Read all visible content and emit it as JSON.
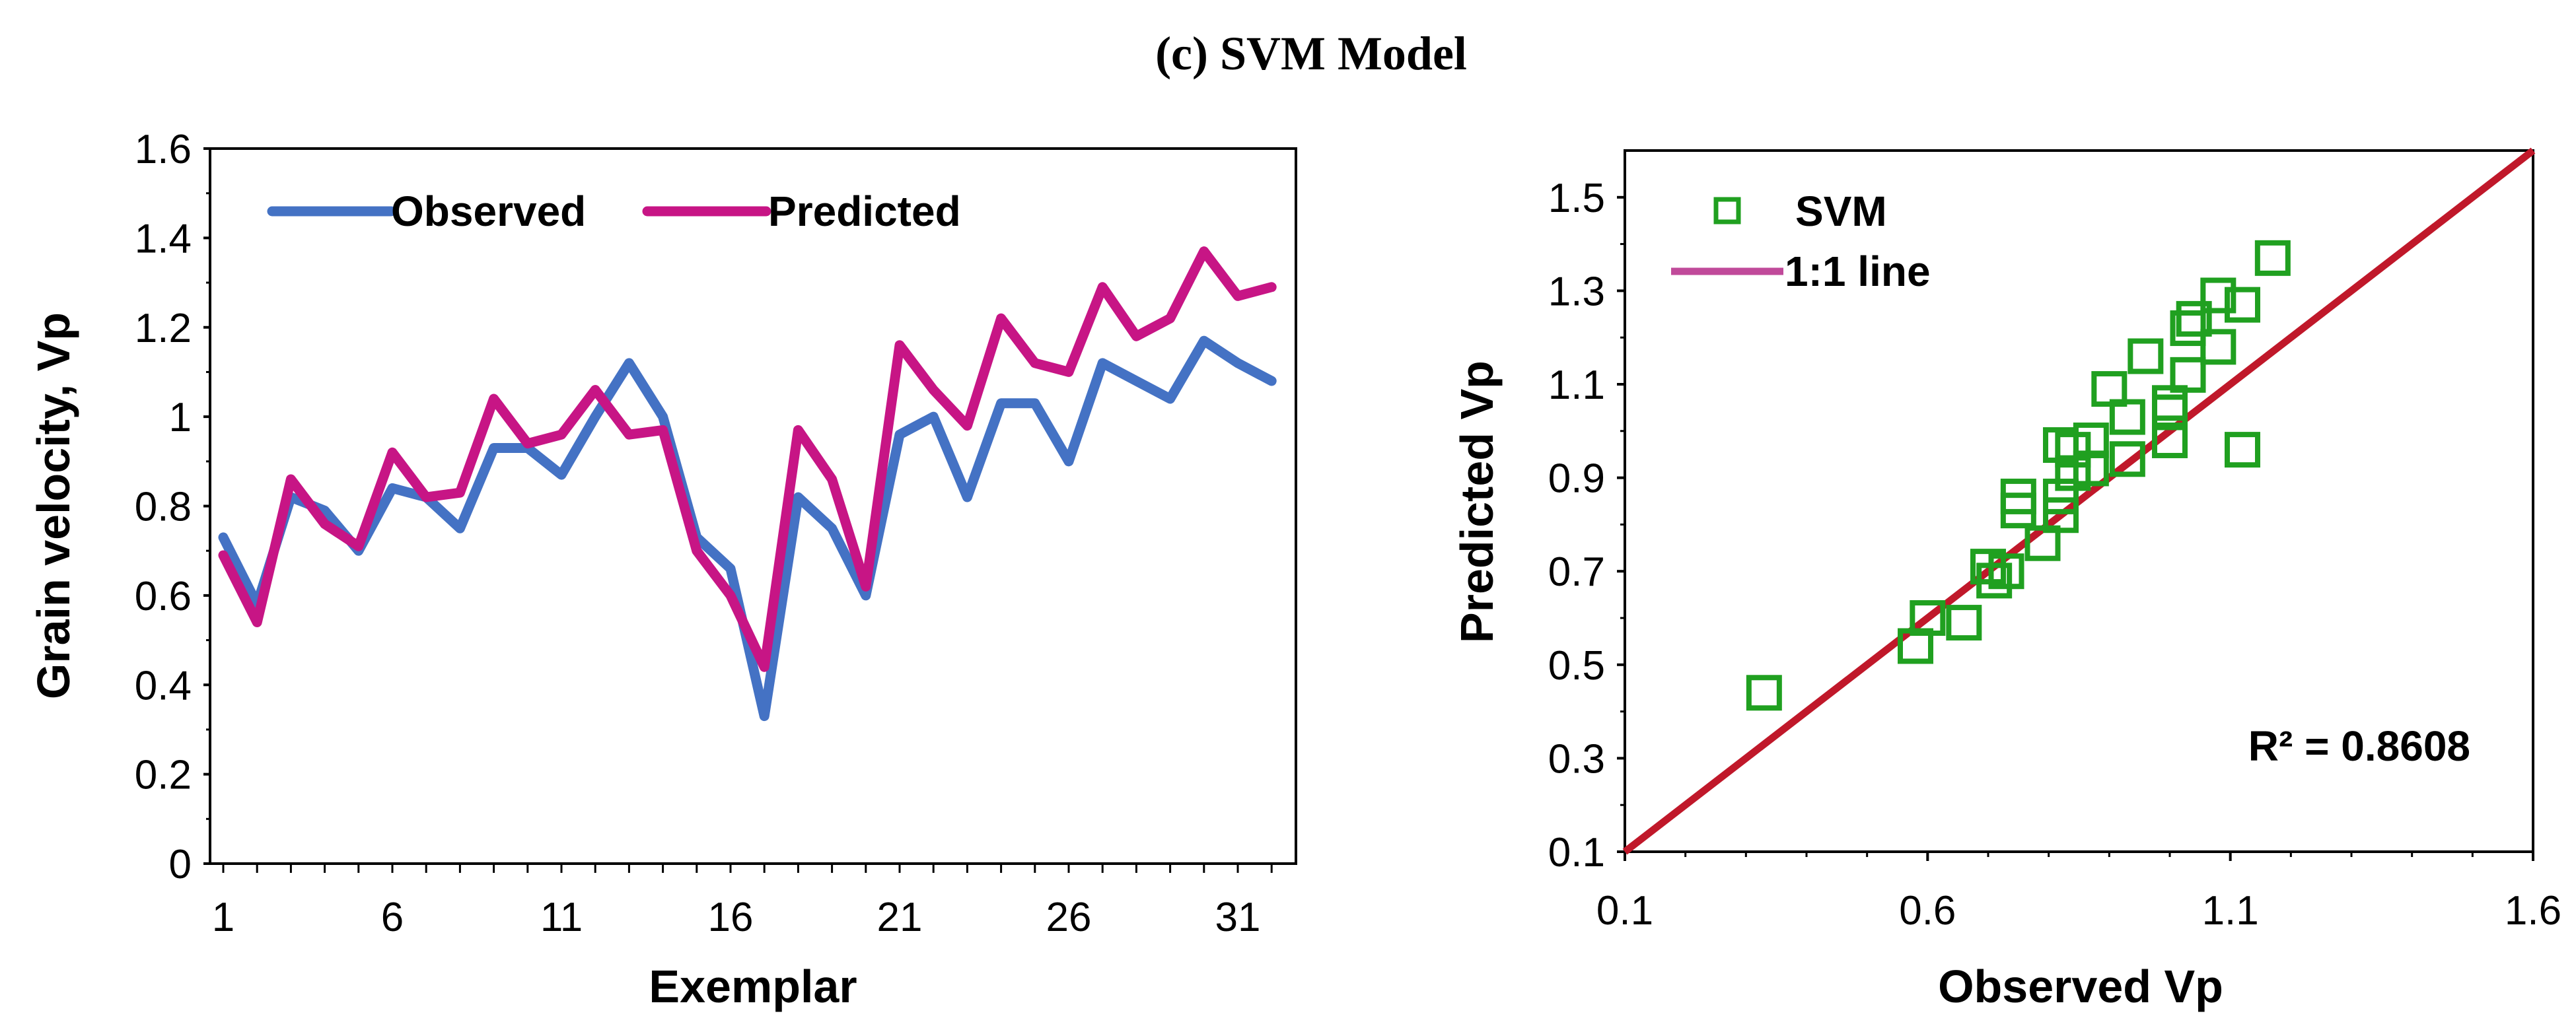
{
  "figure": {
    "title": "(c) SVM Model"
  },
  "colors": {
    "observed": "#4472c4",
    "predicted": "#c71585",
    "svm": "#20a020",
    "one_to_one": "#c0182a",
    "one_to_one_legend": "#c04a9a"
  },
  "chart_data": [
    {
      "type": "line",
      "title": "",
      "xlabel": "Exemplar",
      "ylabel": "Grain velocity, Vp",
      "xlim": [
        1,
        32
      ],
      "ylim": [
        0,
        1.6
      ],
      "xticks": [
        1,
        6,
        11,
        16,
        21,
        26,
        31
      ],
      "yticks": [
        0,
        0.2,
        0.4,
        0.6,
        0.8,
        1,
        1.2,
        1.4,
        1.6
      ],
      "ytick_labels": [
        "0",
        "0.2",
        "0.4",
        "0.6",
        "0.8",
        "1",
        "1.2",
        "1.4",
        "1.6"
      ],
      "legend": "top-left",
      "x": [
        1,
        2,
        3,
        4,
        5,
        6,
        7,
        8,
        9,
        10,
        11,
        12,
        13,
        14,
        15,
        16,
        17,
        18,
        19,
        20,
        21,
        22,
        23,
        24,
        25,
        26,
        27,
        28,
        29,
        30,
        31,
        32
      ],
      "series": [
        {
          "name": "Observed",
          "color": "#4472c4",
          "values": [
            0.73,
            0.58,
            0.82,
            0.79,
            0.7,
            0.84,
            0.82,
            0.75,
            0.93,
            0.93,
            0.87,
            1.0,
            1.12,
            1.0,
            0.73,
            0.66,
            0.33,
            0.82,
            0.75,
            0.6,
            0.96,
            1.0,
            0.82,
            1.03,
            1.03,
            0.9,
            1.12,
            1.08,
            1.04,
            1.17,
            1.12,
            1.08
          ]
        },
        {
          "name": "Predicted",
          "color": "#c71585",
          "values": [
            0.69,
            0.54,
            0.86,
            0.76,
            0.71,
            0.92,
            0.82,
            0.83,
            1.04,
            0.94,
            0.96,
            1.06,
            0.96,
            0.97,
            0.7,
            0.6,
            0.44,
            0.97,
            0.86,
            0.62,
            1.16,
            1.06,
            0.98,
            1.22,
            1.12,
            1.1,
            1.29,
            1.18,
            1.22,
            1.37,
            1.27,
            1.29
          ]
        }
      ]
    },
    {
      "type": "scatter",
      "title": "",
      "xlabel": "Observed Vp",
      "ylabel": "Predicted Vp",
      "xlim": [
        0.1,
        1.6
      ],
      "ylim": [
        0.1,
        1.6
      ],
      "xticks": [
        0.1,
        0.6,
        1.1,
        1.6
      ],
      "xtick_labels": [
        "0.1",
        "0.6",
        "1.1",
        "1.6"
      ],
      "yticks": [
        0.1,
        0.3,
        0.5,
        0.7,
        0.9,
        1.1,
        1.3,
        1.5
      ],
      "ytick_labels": [
        "0.1",
        "0.3",
        "0.5",
        "0.7",
        "0.9",
        "1.1",
        "1.3",
        "1.5"
      ],
      "legend": "top-left",
      "annotation": "R² = 0.8608",
      "series": [
        {
          "name": "SVM",
          "marker": "hollow-square",
          "color": "#20a020",
          "points": [
            [
              0.33,
              0.44
            ],
            [
              0.58,
              0.54
            ],
            [
              0.6,
              0.6
            ],
            [
              0.66,
              0.59
            ],
            [
              0.7,
              0.71
            ],
            [
              0.71,
              0.68
            ],
            [
              0.73,
              0.7
            ],
            [
              0.75,
              0.83
            ],
            [
              0.75,
              0.86
            ],
            [
              0.79,
              0.76
            ],
            [
              0.82,
              0.82
            ],
            [
              0.82,
              0.86
            ],
            [
              0.82,
              0.97
            ],
            [
              0.84,
              0.96
            ],
            [
              0.84,
              0.91
            ],
            [
              0.87,
              0.92
            ],
            [
              0.87,
              0.98
            ],
            [
              0.9,
              1.09
            ],
            [
              0.93,
              0.94
            ],
            [
              0.93,
              1.03
            ],
            [
              0.96,
              1.16
            ],
            [
              1.0,
              0.98
            ],
            [
              1.0,
              1.04
            ],
            [
              1.0,
              1.06
            ],
            [
              1.03,
              1.12
            ],
            [
              1.03,
              1.22
            ],
            [
              1.04,
              1.24
            ],
            [
              1.08,
              1.18
            ],
            [
              1.08,
              1.29
            ],
            [
              1.12,
              1.27
            ],
            [
              1.12,
              0.96
            ],
            [
              1.17,
              1.37
            ]
          ]
        },
        {
          "name": "1:1 line",
          "type": "line",
          "color": "#c0182a",
          "x": [
            0.1,
            1.6
          ],
          "y": [
            0.1,
            1.6
          ]
        }
      ]
    }
  ]
}
